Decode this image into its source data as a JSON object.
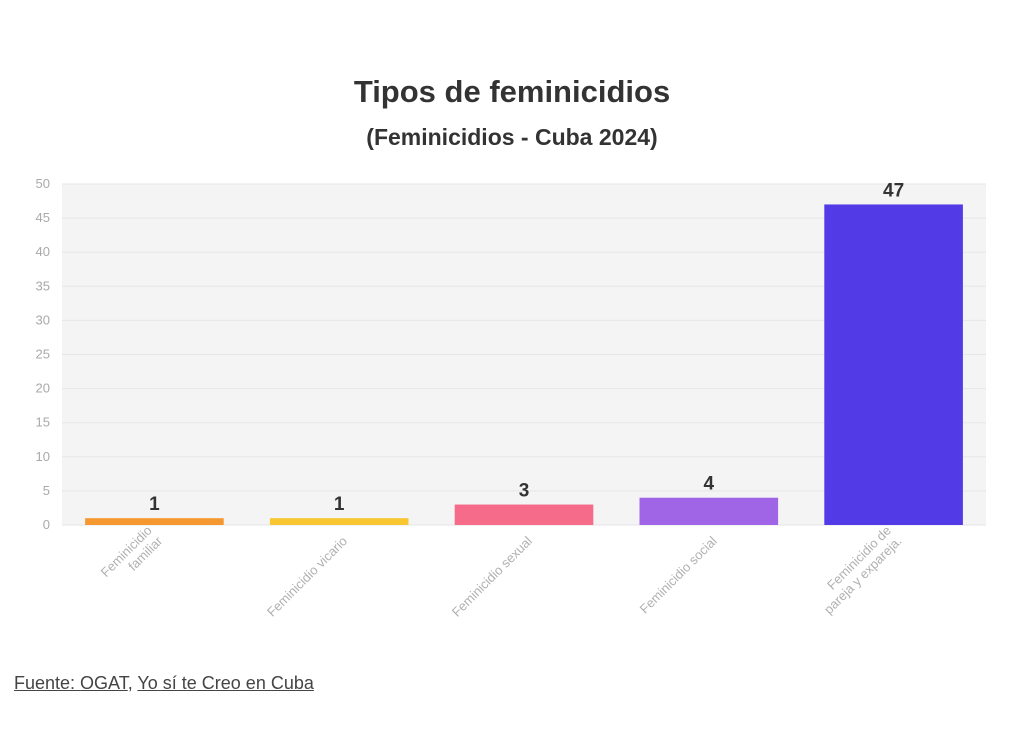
{
  "chart_data": {
    "type": "bar",
    "title": "Tipos de feminicidios",
    "subtitle": "(Feminicidios - Cuba 2024)",
    "categories": [
      [
        "Feminicidio",
        "familiar"
      ],
      [
        "Feminicidio vicario"
      ],
      [
        "Feminicidio sexual"
      ],
      [
        "Feminicidio social"
      ],
      [
        "Feminicidio de",
        "pareja y expareja."
      ]
    ],
    "values": [
      1,
      1,
      3,
      4,
      47
    ],
    "colors": [
      "#f4982f",
      "#f7c631",
      "#f76b8a",
      "#a064e6",
      "#523be6"
    ],
    "ylim": [
      0,
      50
    ],
    "yticks": [
      0,
      5,
      10,
      15,
      20,
      25,
      30,
      35,
      40,
      45,
      50
    ],
    "grid": true,
    "xlabel": "",
    "ylabel": ""
  },
  "source": {
    "prefix": "Fuente: ",
    "link1": "OGAT",
    "separator": ", ",
    "link2": "Yo sí te Creo en Cuba"
  }
}
